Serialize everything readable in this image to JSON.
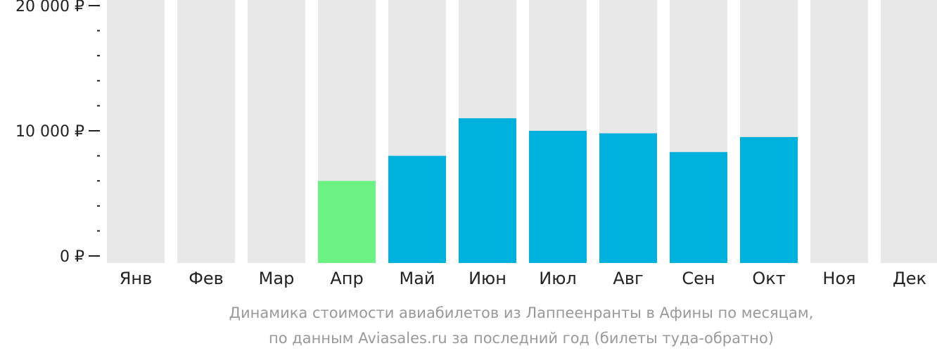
{
  "chart_data": {
    "type": "bar",
    "categories": [
      "Янв",
      "Фев",
      "Мар",
      "Апр",
      "Май",
      "Июн",
      "Июл",
      "Авг",
      "Сен",
      "Окт",
      "Ноя",
      "Дек"
    ],
    "values": [
      null,
      null,
      null,
      6000,
      8000,
      11000,
      10000,
      9800,
      8300,
      9500,
      null,
      null
    ],
    "highlight_category": "Апр",
    "ylim": [
      0,
      20000
    ],
    "yticks": [
      {
        "value": 0,
        "label": "0 ₽"
      },
      {
        "value": 10000,
        "label": "10 000 ₽"
      },
      {
        "value": 20000,
        "label": "20 000 ₽"
      }
    ],
    "minor_tick_step": 2000,
    "colors": {
      "bar": "#00b0dd",
      "highlight": "#6bf283",
      "background_bar": "#e8e8e8",
      "axis": "#222222",
      "caption": "#999999"
    },
    "caption": [
      "Динамика стоимости авиабилетов из Лаппеенранты в Афины по месяцам,",
      "по данным Aviasales.ru за последний год (билеты туда-обратно)"
    ]
  }
}
